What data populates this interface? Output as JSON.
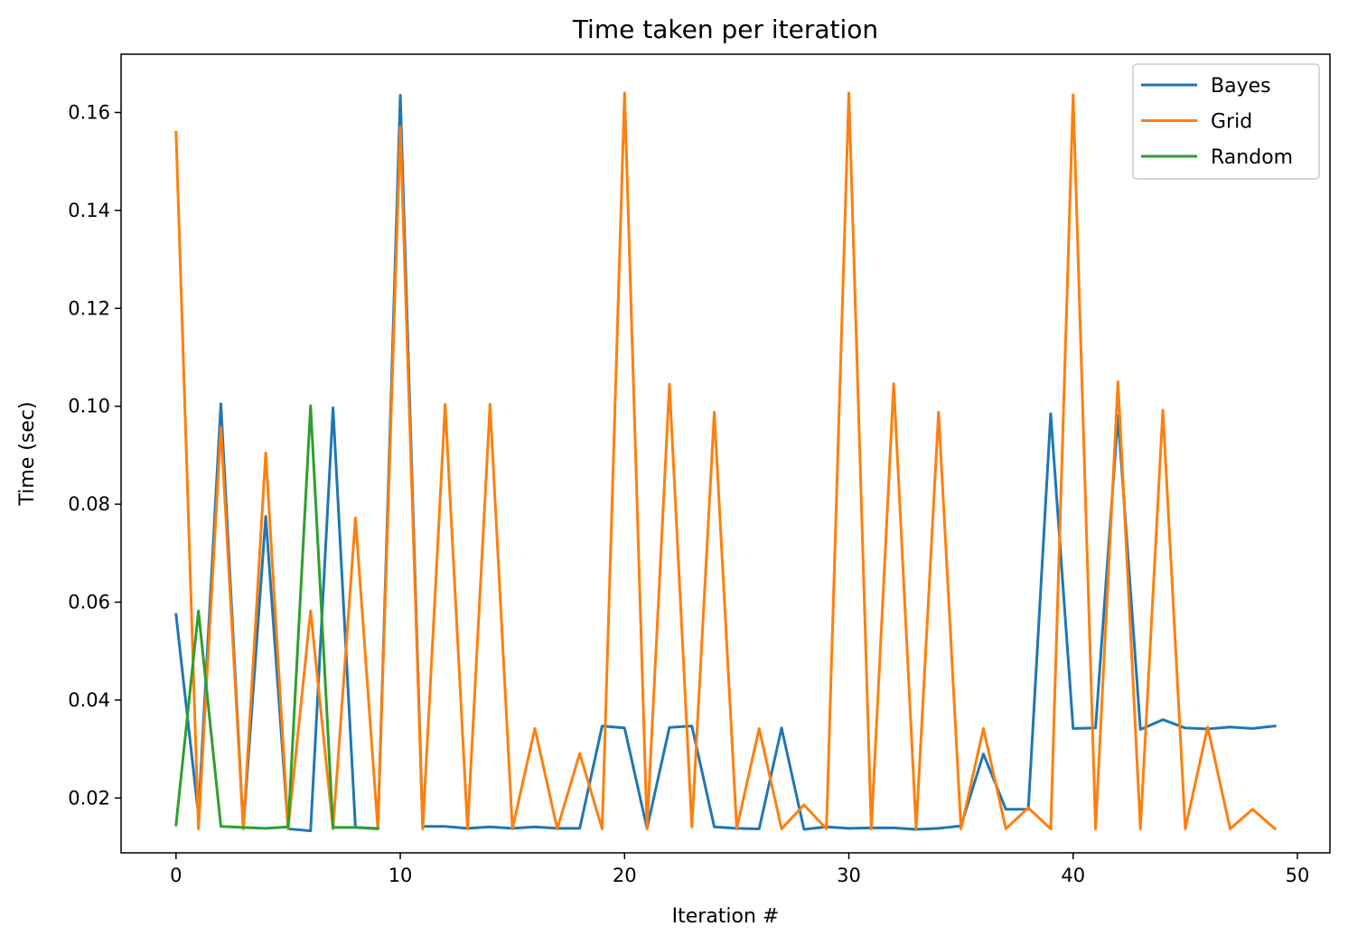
{
  "chart_data": {
    "type": "line",
    "title": "Time taken per iteration",
    "xlabel": "Iteration #",
    "ylabel": "Time (sec)",
    "xlim": [
      -2.45,
      51.45
    ],
    "ylim": [
      0.0088,
      0.1719
    ],
    "xticks": [
      0,
      10,
      20,
      30,
      40,
      50
    ],
    "xtick_labels": [
      "0",
      "10",
      "20",
      "30",
      "40",
      "50"
    ],
    "yticks": [
      0.02,
      0.04,
      0.06,
      0.08,
      0.1,
      0.12,
      0.14,
      0.16
    ],
    "ytick_labels": [
      "0.02",
      "0.04",
      "0.06",
      "0.08",
      "0.10",
      "0.12",
      "0.14",
      "0.16"
    ],
    "grid": false,
    "legend_position": "top-right",
    "series": [
      {
        "name": "Bayes",
        "color": "#1f77b4",
        "x": [
          0,
          1,
          2,
          3,
          4,
          5,
          6,
          7,
          8,
          9,
          10,
          11,
          12,
          13,
          14,
          15,
          16,
          17,
          18,
          19,
          20,
          21,
          22,
          23,
          24,
          25,
          26,
          27,
          28,
          29,
          30,
          31,
          32,
          33,
          34,
          35,
          36,
          37,
          38,
          39,
          40,
          41,
          42,
          43,
          44,
          45,
          46,
          47,
          48,
          49
        ],
        "values": [
          0.0575,
          0.0165,
          0.1005,
          0.0138,
          0.0775,
          0.0137,
          0.0133,
          0.0997,
          0.014,
          0.0137,
          0.1635,
          0.0142,
          0.0142,
          0.0138,
          0.0141,
          0.0138,
          0.0141,
          0.0138,
          0.0138,
          0.0347,
          0.0343,
          0.0138,
          0.0344,
          0.0347,
          0.0141,
          0.0138,
          0.0137,
          0.0343,
          0.0136,
          0.0141,
          0.0138,
          0.0139,
          0.0139,
          0.0136,
          0.0138,
          0.0143,
          0.029,
          0.0177,
          0.0177,
          0.0985,
          0.0342,
          0.0343,
          0.098,
          0.034,
          0.036,
          0.0343,
          0.0341,
          0.0345,
          0.0342,
          0.0347
        ]
      },
      {
        "name": "Grid",
        "color": "#ff7f0e",
        "x": [
          0,
          1,
          2,
          3,
          4,
          5,
          6,
          7,
          8,
          9,
          10,
          11,
          12,
          13,
          14,
          15,
          16,
          17,
          18,
          19,
          20,
          21,
          22,
          23,
          24,
          25,
          26,
          27,
          28,
          29,
          30,
          31,
          32,
          33,
          34,
          35,
          36,
          37,
          38,
          39,
          40,
          41,
          42,
          43,
          44,
          45,
          46,
          47,
          48,
          49
        ],
        "values": [
          0.156,
          0.0137,
          0.0957,
          0.0137,
          0.0905,
          0.0137,
          0.0582,
          0.0137,
          0.0772,
          0.0137,
          0.157,
          0.0137,
          0.1004,
          0.0137,
          0.1004,
          0.0137,
          0.0342,
          0.0137,
          0.0291,
          0.0137,
          0.164,
          0.0137,
          0.1045,
          0.0141,
          0.0988,
          0.0137,
          0.0342,
          0.0137,
          0.0186,
          0.0137,
          0.164,
          0.0137,
          0.1046,
          0.0137,
          0.0988,
          0.0137,
          0.0342,
          0.0137,
          0.018,
          0.0137,
          0.1636,
          0.0137,
          0.105,
          0.0137,
          0.0992,
          0.0137,
          0.0345,
          0.0137,
          0.0177,
          0.0137
        ]
      },
      {
        "name": "Random",
        "color": "#2ca02c",
        "x": [
          0,
          1,
          2,
          3,
          4,
          5,
          6,
          7,
          8,
          9
        ],
        "values": [
          0.0145,
          0.0582,
          0.0142,
          0.014,
          0.0138,
          0.0141,
          0.1001,
          0.014,
          0.014,
          0.0138
        ]
      }
    ]
  }
}
